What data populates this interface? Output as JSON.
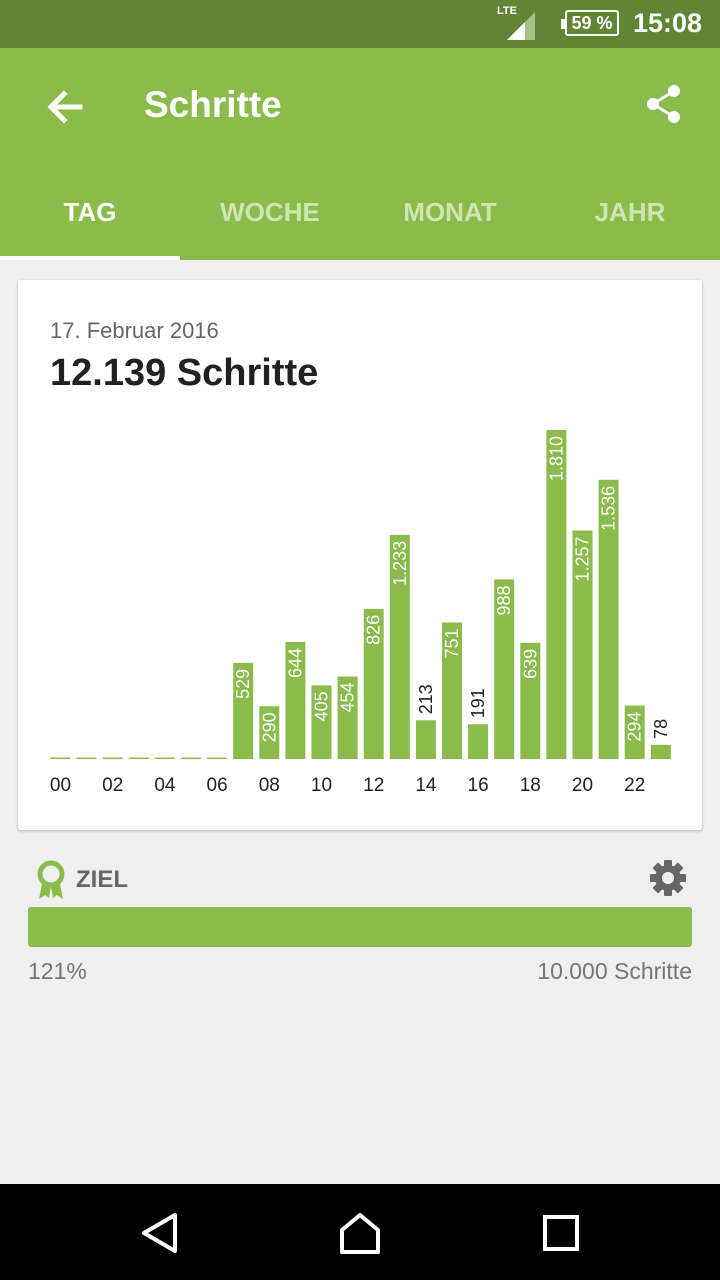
{
  "status_bar": {
    "network": "LTE",
    "battery": "59 %",
    "time": "15:08"
  },
  "app_bar": {
    "title": "Schritte",
    "back_icon": "arrow-back-icon",
    "share_icon": "share-icon",
    "color": "#8bbb4b"
  },
  "tabs": [
    {
      "label": "TAG",
      "active": true
    },
    {
      "label": "WOCHE",
      "active": false
    },
    {
      "label": "MONAT",
      "active": false
    },
    {
      "label": "JAHR",
      "active": false
    }
  ],
  "card": {
    "date": "17. Februar 2016",
    "total": "12.139 Schritte"
  },
  "chart_data": {
    "type": "bar",
    "categories": [
      "00",
      "01",
      "02",
      "03",
      "04",
      "05",
      "06",
      "07",
      "08",
      "09",
      "10",
      "11",
      "12",
      "13",
      "14",
      "15",
      "16",
      "17",
      "18",
      "19",
      "20",
      "21",
      "22",
      "23"
    ],
    "values": [
      0,
      0,
      0,
      0,
      0,
      0,
      0,
      529,
      290,
      644,
      405,
      454,
      826,
      1233,
      213,
      751,
      191,
      988,
      639,
      1810,
      1257,
      1536,
      294,
      78
    ],
    "value_labels": [
      "",
      "",
      "",
      "",
      "",
      "",
      "",
      "529",
      "290",
      "644",
      "405",
      "454",
      "826",
      "1.233",
      "213",
      "751",
      "191",
      "988",
      "639",
      "1.810",
      "1.257",
      "1.536",
      "294",
      "78"
    ],
    "x_tick_labels": [
      "00",
      "02",
      "04",
      "06",
      "08",
      "10",
      "12",
      "14",
      "16",
      "18",
      "20",
      "22"
    ],
    "ylim": [
      0,
      1810
    ],
    "bar_color": "#8bbb4b"
  },
  "goal": {
    "title": "ZIEL",
    "icon": "award-ribbon-icon",
    "settings_icon": "gear-icon",
    "progress": 1.0,
    "percent": "121%",
    "target": "10.000 Schritte"
  },
  "nav_bar": {
    "icons": [
      "back-triangle-icon",
      "home-icon",
      "recents-square-icon"
    ]
  }
}
